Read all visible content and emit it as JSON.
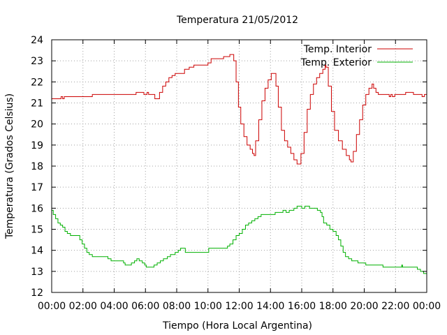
{
  "chart_data": {
    "type": "line",
    "title": "Temperatura 21/05/2012",
    "xlabel": "Tiempo (Hora Local Argentina)",
    "ylabel": "Temperatura (Grados Celsius)",
    "xlim": [
      0,
      24
    ],
    "ylim": [
      12,
      24
    ],
    "grid": true,
    "legend_position": "top-right",
    "x_ticks": [
      {
        "value": 0,
        "label": "00:00"
      },
      {
        "value": 2,
        "label": "02:00"
      },
      {
        "value": 4,
        "label": "04:00"
      },
      {
        "value": 6,
        "label": "06:00"
      },
      {
        "value": 8,
        "label": "08:00"
      },
      {
        "value": 10,
        "label": "10:00"
      },
      {
        "value": 12,
        "label": "12:00"
      },
      {
        "value": 14,
        "label": "14:00"
      },
      {
        "value": 16,
        "label": "16:00"
      },
      {
        "value": 18,
        "label": "18:00"
      },
      {
        "value": 20,
        "label": "20:00"
      },
      {
        "value": 22,
        "label": "22:00"
      },
      {
        "value": 24,
        "label": "00:00"
      }
    ],
    "y_ticks": [
      {
        "value": 12,
        "label": "12"
      },
      {
        "value": 13,
        "label": "13"
      },
      {
        "value": 14,
        "label": "14"
      },
      {
        "value": 15,
        "label": "15"
      },
      {
        "value": 16,
        "label": "16"
      },
      {
        "value": 17,
        "label": "17"
      },
      {
        "value": 18,
        "label": "18"
      },
      {
        "value": 19,
        "label": "19"
      },
      {
        "value": 20,
        "label": "20"
      },
      {
        "value": 21,
        "label": "21"
      },
      {
        "value": 22,
        "label": "22"
      },
      {
        "value": 23,
        "label": "23"
      },
      {
        "value": 24,
        "label": "24"
      }
    ],
    "series": [
      {
        "name": "Temp. Interior",
        "color": "#cc0000",
        "step": true,
        "points": [
          [
            0,
            21.2
          ],
          [
            0.5,
            21.2
          ],
          [
            0.6,
            21.3
          ],
          [
            0.7,
            21.2
          ],
          [
            0.8,
            21.3
          ],
          [
            1.4,
            21.3
          ],
          [
            2.5,
            21.3
          ],
          [
            2.6,
            21.4
          ],
          [
            5.3,
            21.4
          ],
          [
            5.4,
            21.5
          ],
          [
            5.8,
            21.5
          ],
          [
            5.9,
            21.4
          ],
          [
            6.1,
            21.5
          ],
          [
            6.2,
            21.4
          ],
          [
            6.5,
            21.4
          ],
          [
            6.6,
            21.2
          ],
          [
            6.75,
            21.2
          ],
          [
            6.9,
            21.5
          ],
          [
            7.1,
            21.8
          ],
          [
            7.3,
            22.0
          ],
          [
            7.5,
            22.2
          ],
          [
            7.7,
            22.3
          ],
          [
            7.9,
            22.4
          ],
          [
            8.4,
            22.4
          ],
          [
            8.5,
            22.6
          ],
          [
            8.8,
            22.7
          ],
          [
            9.1,
            22.8
          ],
          [
            9.8,
            22.8
          ],
          [
            10.0,
            22.9
          ],
          [
            10.2,
            23.1
          ],
          [
            10.9,
            23.1
          ],
          [
            11.0,
            23.2
          ],
          [
            11.4,
            23.3
          ],
          [
            11.6,
            23.3
          ],
          [
            11.65,
            23.0
          ],
          [
            11.8,
            22.0
          ],
          [
            11.95,
            20.8
          ],
          [
            12.1,
            20.0
          ],
          [
            12.3,
            19.4
          ],
          [
            12.5,
            19.0
          ],
          [
            12.7,
            18.8
          ],
          [
            12.85,
            18.6
          ],
          [
            12.95,
            18.5
          ],
          [
            13.05,
            19.2
          ],
          [
            13.25,
            20.2
          ],
          [
            13.45,
            21.1
          ],
          [
            13.65,
            21.7
          ],
          [
            13.85,
            22.1
          ],
          [
            14.05,
            22.4
          ],
          [
            14.25,
            22.4
          ],
          [
            14.35,
            21.8
          ],
          [
            14.5,
            20.8
          ],
          [
            14.7,
            19.7
          ],
          [
            14.9,
            19.2
          ],
          [
            15.1,
            18.9
          ],
          [
            15.3,
            18.6
          ],
          [
            15.5,
            18.3
          ],
          [
            15.7,
            18.1
          ],
          [
            15.8,
            18.1
          ],
          [
            15.95,
            18.6
          ],
          [
            16.15,
            19.6
          ],
          [
            16.35,
            20.7
          ],
          [
            16.55,
            21.4
          ],
          [
            16.75,
            21.9
          ],
          [
            16.95,
            22.2
          ],
          [
            17.15,
            22.4
          ],
          [
            17.35,
            22.6
          ],
          [
            17.5,
            22.8
          ],
          [
            17.55,
            22.7
          ],
          [
            17.7,
            21.8
          ],
          [
            17.9,
            20.6
          ],
          [
            18.1,
            19.7
          ],
          [
            18.35,
            19.2
          ],
          [
            18.6,
            18.8
          ],
          [
            18.85,
            18.5
          ],
          [
            19.05,
            18.3
          ],
          [
            19.15,
            18.2
          ],
          [
            19.3,
            18.7
          ],
          [
            19.5,
            19.5
          ],
          [
            19.7,
            20.2
          ],
          [
            19.9,
            20.9
          ],
          [
            20.1,
            21.4
          ],
          [
            20.3,
            21.7
          ],
          [
            20.5,
            21.9
          ],
          [
            20.6,
            21.7
          ],
          [
            20.75,
            21.5
          ],
          [
            20.9,
            21.4
          ],
          [
            21.5,
            21.4
          ],
          [
            21.6,
            21.3
          ],
          [
            21.7,
            21.4
          ],
          [
            21.8,
            21.3
          ],
          [
            21.95,
            21.4
          ],
          [
            22.5,
            21.4
          ],
          [
            22.65,
            21.5
          ],
          [
            23.05,
            21.5
          ],
          [
            23.15,
            21.4
          ],
          [
            23.6,
            21.4
          ],
          [
            23.7,
            21.3
          ],
          [
            23.85,
            21.4
          ],
          [
            24,
            21.3
          ]
        ]
      },
      {
        "name": "Temp. Exterior",
        "color": "#00b000",
        "step": true,
        "points": [
          [
            0,
            15.9
          ],
          [
            0.1,
            15.7
          ],
          [
            0.25,
            15.5
          ],
          [
            0.4,
            15.3
          ],
          [
            0.55,
            15.2
          ],
          [
            0.7,
            15.1
          ],
          [
            0.85,
            14.9
          ],
          [
            1.0,
            14.8
          ],
          [
            1.2,
            14.7
          ],
          [
            1.7,
            14.7
          ],
          [
            1.8,
            14.5
          ],
          [
            1.95,
            14.3
          ],
          [
            2.1,
            14.1
          ],
          [
            2.25,
            13.9
          ],
          [
            2.4,
            13.8
          ],
          [
            2.6,
            13.7
          ],
          [
            3.4,
            13.7
          ],
          [
            3.6,
            13.6
          ],
          [
            3.8,
            13.5
          ],
          [
            4.5,
            13.5
          ],
          [
            4.6,
            13.4
          ],
          [
            4.7,
            13.3
          ],
          [
            5.0,
            13.3
          ],
          [
            5.1,
            13.4
          ],
          [
            5.3,
            13.5
          ],
          [
            5.45,
            13.6
          ],
          [
            5.6,
            13.5
          ],
          [
            5.8,
            13.4
          ],
          [
            5.95,
            13.3
          ],
          [
            6.05,
            13.2
          ],
          [
            6.45,
            13.2
          ],
          [
            6.55,
            13.3
          ],
          [
            6.75,
            13.4
          ],
          [
            6.95,
            13.5
          ],
          [
            7.15,
            13.6
          ],
          [
            7.4,
            13.7
          ],
          [
            7.6,
            13.8
          ],
          [
            7.9,
            13.9
          ],
          [
            8.1,
            14.0
          ],
          [
            8.25,
            14.1
          ],
          [
            8.5,
            14.1
          ],
          [
            8.55,
            13.9
          ],
          [
            9.5,
            13.9
          ],
          [
            10.0,
            13.9
          ],
          [
            10.05,
            14.1
          ],
          [
            11.1,
            14.1
          ],
          [
            11.25,
            14.2
          ],
          [
            11.4,
            14.3
          ],
          [
            11.6,
            14.5
          ],
          [
            11.8,
            14.7
          ],
          [
            12.0,
            14.8
          ],
          [
            12.2,
            15.0
          ],
          [
            12.4,
            15.2
          ],
          [
            12.6,
            15.3
          ],
          [
            12.8,
            15.4
          ],
          [
            13.0,
            15.5
          ],
          [
            13.2,
            15.6
          ],
          [
            13.4,
            15.7
          ],
          [
            14.2,
            15.7
          ],
          [
            14.3,
            15.8
          ],
          [
            14.7,
            15.8
          ],
          [
            14.8,
            15.9
          ],
          [
            15.0,
            15.8
          ],
          [
            15.2,
            15.9
          ],
          [
            15.5,
            16.0
          ],
          [
            15.7,
            16.1
          ],
          [
            16.0,
            16.0
          ],
          [
            16.2,
            16.1
          ],
          [
            16.5,
            16.0
          ],
          [
            16.8,
            16.0
          ],
          [
            17.0,
            15.9
          ],
          [
            17.2,
            15.8
          ],
          [
            17.3,
            15.6
          ],
          [
            17.4,
            15.3
          ],
          [
            17.6,
            15.2
          ],
          [
            17.8,
            15.0
          ],
          [
            18.0,
            14.9
          ],
          [
            18.2,
            14.7
          ],
          [
            18.35,
            14.5
          ],
          [
            18.5,
            14.2
          ],
          [
            18.65,
            13.9
          ],
          [
            18.8,
            13.7
          ],
          [
            19.0,
            13.6
          ],
          [
            19.2,
            13.5
          ],
          [
            19.6,
            13.4
          ],
          [
            20.0,
            13.4
          ],
          [
            20.1,
            13.3
          ],
          [
            21.1,
            13.3
          ],
          [
            21.2,
            13.2
          ],
          [
            22.3,
            13.2
          ],
          [
            22.4,
            13.3
          ],
          [
            22.45,
            13.2
          ],
          [
            23.3,
            13.2
          ],
          [
            23.4,
            13.1
          ],
          [
            23.6,
            13.0
          ],
          [
            23.8,
            12.9
          ],
          [
            24,
            12.9
          ]
        ]
      }
    ]
  }
}
